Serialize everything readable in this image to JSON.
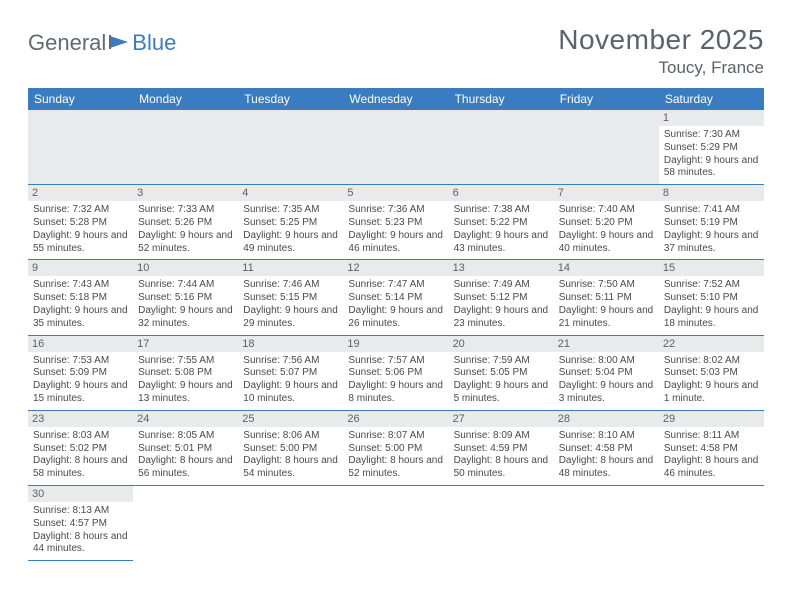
{
  "logo": {
    "text1": "General",
    "text2": "Blue"
  },
  "title": "November 2025",
  "location": "Toucy, France",
  "colors": {
    "header_bg": "#3a7cc2",
    "header_text": "#ffffff",
    "daynum_bg": "#e8eaec",
    "text": "#5a636b",
    "cell_text": "#4a4a4a",
    "border": "#3a7cc2"
  },
  "layout": {
    "cols": 7,
    "rows": 6,
    "first_weekday": "Sunday",
    "leading_blanks": 6
  },
  "weekdays": [
    "Sunday",
    "Monday",
    "Tuesday",
    "Wednesday",
    "Thursday",
    "Friday",
    "Saturday"
  ],
  "days": [
    {
      "n": 1,
      "sunrise": "7:30 AM",
      "sunset": "5:29 PM",
      "daylight": "9 hours and 58 minutes."
    },
    {
      "n": 2,
      "sunrise": "7:32 AM",
      "sunset": "5:28 PM",
      "daylight": "9 hours and 55 minutes."
    },
    {
      "n": 3,
      "sunrise": "7:33 AM",
      "sunset": "5:26 PM",
      "daylight": "9 hours and 52 minutes."
    },
    {
      "n": 4,
      "sunrise": "7:35 AM",
      "sunset": "5:25 PM",
      "daylight": "9 hours and 49 minutes."
    },
    {
      "n": 5,
      "sunrise": "7:36 AM",
      "sunset": "5:23 PM",
      "daylight": "9 hours and 46 minutes."
    },
    {
      "n": 6,
      "sunrise": "7:38 AM",
      "sunset": "5:22 PM",
      "daylight": "9 hours and 43 minutes."
    },
    {
      "n": 7,
      "sunrise": "7:40 AM",
      "sunset": "5:20 PM",
      "daylight": "9 hours and 40 minutes."
    },
    {
      "n": 8,
      "sunrise": "7:41 AM",
      "sunset": "5:19 PM",
      "daylight": "9 hours and 37 minutes."
    },
    {
      "n": 9,
      "sunrise": "7:43 AM",
      "sunset": "5:18 PM",
      "daylight": "9 hours and 35 minutes."
    },
    {
      "n": 10,
      "sunrise": "7:44 AM",
      "sunset": "5:16 PM",
      "daylight": "9 hours and 32 minutes."
    },
    {
      "n": 11,
      "sunrise": "7:46 AM",
      "sunset": "5:15 PM",
      "daylight": "9 hours and 29 minutes."
    },
    {
      "n": 12,
      "sunrise": "7:47 AM",
      "sunset": "5:14 PM",
      "daylight": "9 hours and 26 minutes."
    },
    {
      "n": 13,
      "sunrise": "7:49 AM",
      "sunset": "5:12 PM",
      "daylight": "9 hours and 23 minutes."
    },
    {
      "n": 14,
      "sunrise": "7:50 AM",
      "sunset": "5:11 PM",
      "daylight": "9 hours and 21 minutes."
    },
    {
      "n": 15,
      "sunrise": "7:52 AM",
      "sunset": "5:10 PM",
      "daylight": "9 hours and 18 minutes."
    },
    {
      "n": 16,
      "sunrise": "7:53 AM",
      "sunset": "5:09 PM",
      "daylight": "9 hours and 15 minutes."
    },
    {
      "n": 17,
      "sunrise": "7:55 AM",
      "sunset": "5:08 PM",
      "daylight": "9 hours and 13 minutes."
    },
    {
      "n": 18,
      "sunrise": "7:56 AM",
      "sunset": "5:07 PM",
      "daylight": "9 hours and 10 minutes."
    },
    {
      "n": 19,
      "sunrise": "7:57 AM",
      "sunset": "5:06 PM",
      "daylight": "9 hours and 8 minutes."
    },
    {
      "n": 20,
      "sunrise": "7:59 AM",
      "sunset": "5:05 PM",
      "daylight": "9 hours and 5 minutes."
    },
    {
      "n": 21,
      "sunrise": "8:00 AM",
      "sunset": "5:04 PM",
      "daylight": "9 hours and 3 minutes."
    },
    {
      "n": 22,
      "sunrise": "8:02 AM",
      "sunset": "5:03 PM",
      "daylight": "9 hours and 1 minute."
    },
    {
      "n": 23,
      "sunrise": "8:03 AM",
      "sunset": "5:02 PM",
      "daylight": "8 hours and 58 minutes."
    },
    {
      "n": 24,
      "sunrise": "8:05 AM",
      "sunset": "5:01 PM",
      "daylight": "8 hours and 56 minutes."
    },
    {
      "n": 25,
      "sunrise": "8:06 AM",
      "sunset": "5:00 PM",
      "daylight": "8 hours and 54 minutes."
    },
    {
      "n": 26,
      "sunrise": "8:07 AM",
      "sunset": "5:00 PM",
      "daylight": "8 hours and 52 minutes."
    },
    {
      "n": 27,
      "sunrise": "8:09 AM",
      "sunset": "4:59 PM",
      "daylight": "8 hours and 50 minutes."
    },
    {
      "n": 28,
      "sunrise": "8:10 AM",
      "sunset": "4:58 PM",
      "daylight": "8 hours and 48 minutes."
    },
    {
      "n": 29,
      "sunrise": "8:11 AM",
      "sunset": "4:58 PM",
      "daylight": "8 hours and 46 minutes."
    },
    {
      "n": 30,
      "sunrise": "8:13 AM",
      "sunset": "4:57 PM",
      "daylight": "8 hours and 44 minutes."
    }
  ],
  "labels": {
    "sunrise": "Sunrise:",
    "sunset": "Sunset:",
    "daylight": "Daylight:"
  }
}
